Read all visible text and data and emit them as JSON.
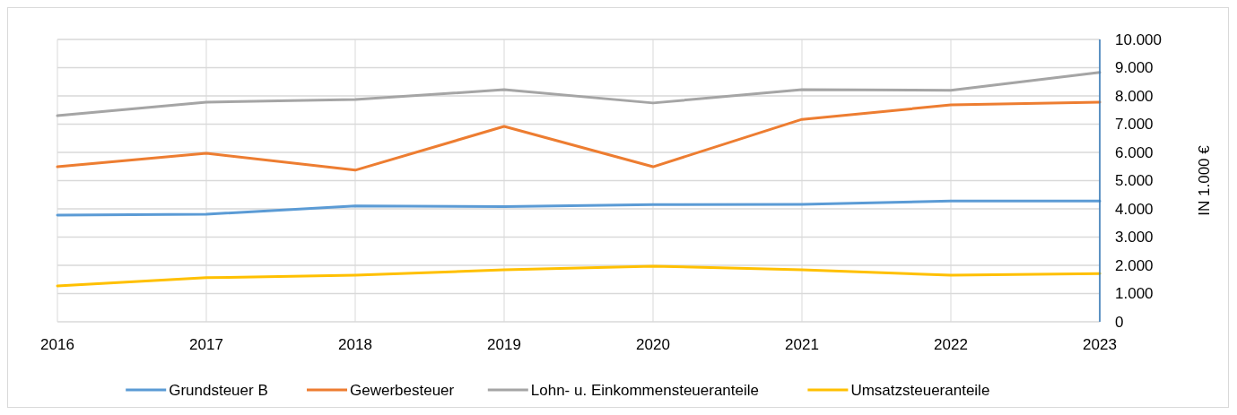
{
  "chart_data": {
    "type": "line",
    "ylabel": "IN 1.000 €",
    "categories": [
      "2016",
      "2017",
      "2018",
      "2019",
      "2020",
      "2021",
      "2022",
      "2023"
    ],
    "series": [
      {
        "name": "Grundsteuer B",
        "color": "#5b9bd5",
        "values": [
          3780,
          3810,
          4100,
          4080,
          4150,
          4160,
          4280,
          4280
        ]
      },
      {
        "name": "Gewerbesteuer",
        "color": "#ed7d31",
        "values": [
          5490,
          5970,
          5370,
          6920,
          5490,
          7170,
          7680,
          7780
        ]
      },
      {
        "name": "Lohn- u. Einkommensteueranteile",
        "color": "#a5a5a5",
        "values": [
          7300,
          7780,
          7870,
          8220,
          7750,
          8220,
          8200,
          8830
        ]
      },
      {
        "name": "Umsatzsteueranteile",
        "color": "#ffc000",
        "values": [
          1270,
          1560,
          1650,
          1840,
          1970,
          1840,
          1650,
          1710
        ]
      }
    ],
    "ylim": [
      0,
      10000
    ],
    "yticks": [
      0,
      {
        "value": 1000,
        "label": "1.000"
      },
      {
        "value": 2000,
        "label": "2.000"
      },
      {
        "value": 3000,
        "label": "3.000"
      },
      {
        "value": 4000,
        "label": "4.000"
      },
      {
        "value": 5000,
        "label": "5.000"
      },
      {
        "value": 6000,
        "label": "6.000"
      },
      {
        "value": 7000,
        "label": "7.000"
      },
      {
        "value": 8000,
        "label": "8.000"
      },
      {
        "value": 9000,
        "label": "9.000"
      },
      {
        "value": 10000,
        "label": "10.000"
      }
    ],
    "grid": true,
    "legend": "bottom",
    "marker": "none",
    "line_style": "solid"
  }
}
